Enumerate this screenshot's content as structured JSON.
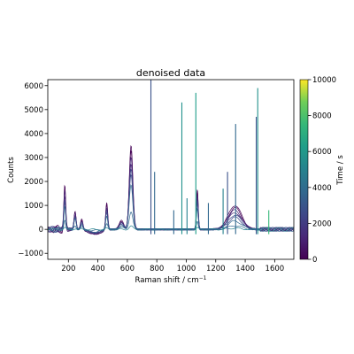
{
  "chart_data": {
    "type": "line",
    "title": "denoised data",
    "xlabel": "Raman shift / cm",
    "xlabel_superscript": "−1",
    "ylabel": "Counts",
    "xlim": [
      60,
      1730
    ],
    "ylim": [
      -1250,
      6250
    ],
    "xticks": [
      200,
      400,
      600,
      800,
      1000,
      1200,
      1400,
      1600
    ],
    "yticks": [
      -1000,
      0,
      1000,
      2000,
      3000,
      4000,
      5000,
      6000
    ],
    "grid": false,
    "colorbar": {
      "label": "Time / s",
      "range": [
        0,
        10000
      ],
      "ticks": [
        0,
        2000,
        4000,
        6000,
        8000,
        10000
      ],
      "colormap": "viridis"
    },
    "peaks": [
      {
        "x": 175,
        "height": 1300,
        "width": 6
      },
      {
        "x": 245,
        "height": 550,
        "width": 7
      },
      {
        "x": 290,
        "height": 300,
        "width": 8
      },
      {
        "x": 460,
        "height": 800,
        "width": 7
      },
      {
        "x": 560,
        "height": 250,
        "width": 15
      },
      {
        "x": 625,
        "height": 2500,
        "width": 12
      },
      {
        "x": 1075,
        "height": 1200,
        "width": 6
      },
      {
        "x": 1330,
        "height": 1000,
        "width": 45
      }
    ],
    "spikes": [
      {
        "x": 760,
        "y": 6250,
        "color": "#3b528b"
      },
      {
        "x": 785,
        "y": 2400,
        "color": "#31688e"
      },
      {
        "x": 915,
        "y": 800,
        "color": "#31688e"
      },
      {
        "x": 970,
        "y": 5300,
        "color": "#21918c"
      },
      {
        "x": 1005,
        "y": 1300,
        "color": "#26828e"
      },
      {
        "x": 1065,
        "y": 5700,
        "color": "#1f9e89"
      },
      {
        "x": 1150,
        "y": 1100,
        "color": "#31688e"
      },
      {
        "x": 1250,
        "y": 1700,
        "color": "#26828e"
      },
      {
        "x": 1280,
        "y": 2400,
        "color": "#3b528b"
      },
      {
        "x": 1335,
        "y": 4400,
        "color": "#31688e"
      },
      {
        "x": 1475,
        "y": 4700,
        "color": "#3b528b"
      },
      {
        "x": 1485,
        "y": 5900,
        "color": "#21918c"
      },
      {
        "x": 1560,
        "y": 800,
        "color": "#35b779"
      }
    ],
    "series": [
      {
        "t": 0,
        "scale": 1.4,
        "broad": 1.0
      },
      {
        "t": 400,
        "scale": 1.3,
        "broad": 0.9
      },
      {
        "t": 900,
        "scale": 1.2,
        "broad": 0.8
      },
      {
        "t": 1400,
        "scale": 1.1,
        "broad": 0.7
      },
      {
        "t": 2000,
        "scale": 1.0,
        "broad": 0.6
      },
      {
        "t": 2600,
        "scale": 0.9,
        "broad": 0.5
      },
      {
        "t": 3200,
        "scale": 0.75,
        "broad": 0.35
      },
      {
        "t": 4000,
        "scale": 0.3,
        "broad": 0.15
      },
      {
        "t": 5200,
        "scale": 0.05,
        "broad": 0.05
      }
    ]
  }
}
